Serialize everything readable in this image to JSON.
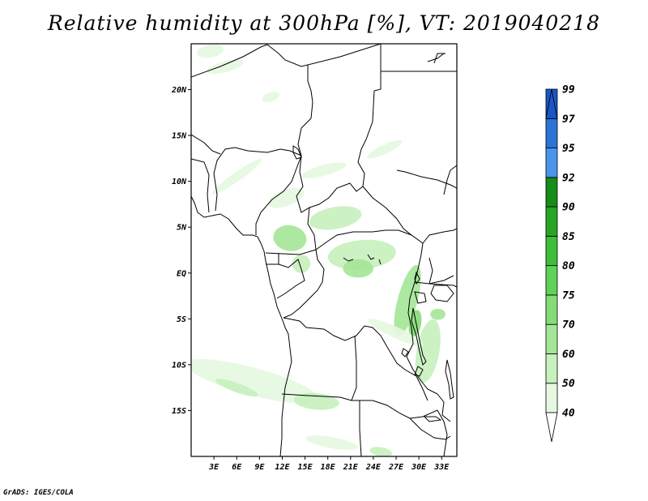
{
  "title": "Relative humidity at 300hPa [%], VT: 2019040218",
  "credit": "GrADS: IGES/COLA",
  "map": {
    "lon_range": [
      0,
      35
    ],
    "lat_range": [
      -20,
      25
    ],
    "lat_ticks": [
      {
        "value": 20,
        "label": "20N"
      },
      {
        "value": 15,
        "label": "15N"
      },
      {
        "value": 10,
        "label": "10N"
      },
      {
        "value": 5,
        "label": "5N"
      },
      {
        "value": 0,
        "label": "EQ"
      },
      {
        "value": -5,
        "label": "5S"
      },
      {
        "value": -10,
        "label": "10S"
      },
      {
        "value": -15,
        "label": "15S"
      }
    ],
    "lon_ticks": [
      {
        "value": 3,
        "label": "3E"
      },
      {
        "value": 6,
        "label": "6E"
      },
      {
        "value": 9,
        "label": "9E"
      },
      {
        "value": 12,
        "label": "12E"
      },
      {
        "value": 15,
        "label": "15E"
      },
      {
        "value": 18,
        "label": "18E"
      },
      {
        "value": 21,
        "label": "21E"
      },
      {
        "value": 24,
        "label": "24E"
      },
      {
        "value": 27,
        "label": "27E"
      },
      {
        "value": 30,
        "label": "30E"
      },
      {
        "value": 33,
        "label": "33E"
      }
    ]
  },
  "colorbar": {
    "levels": [
      {
        "label": "40",
        "color": "#ffffff"
      },
      {
        "label": "50",
        "color": "#e6f8e0"
      },
      {
        "label": "60",
        "color": "#c6f0bc"
      },
      {
        "label": "70",
        "color": "#a4e697"
      },
      {
        "label": "75",
        "color": "#84dc77"
      },
      {
        "label": "80",
        "color": "#5fd258"
      },
      {
        "label": "85",
        "color": "#3fbe3a"
      },
      {
        "label": "90",
        "color": "#27a525"
      },
      {
        "label": "92",
        "color": "#168c19"
      },
      {
        "label": "95",
        "color": "#4a95ea"
      },
      {
        "label": "97",
        "color": "#2a74d8"
      },
      {
        "label": "99",
        "color": "#1a56c6"
      }
    ]
  },
  "humidity_blobs": [
    {
      "lon": 2.5,
      "lat": 24.2,
      "rx": 1.8,
      "ry": 0.7,
      "rot": -10,
      "level": 1
    },
    {
      "lon": 4.5,
      "lat": 22.5,
      "rx": 2.5,
      "ry": 0.6,
      "rot": -15,
      "level": 1
    },
    {
      "lon": 10.5,
      "lat": 19.2,
      "rx": 1.2,
      "ry": 0.5,
      "rot": -20,
      "level": 1
    },
    {
      "lon": 6.0,
      "lat": 10.5,
      "rx": 4.0,
      "ry": 0.5,
      "rot": -35,
      "level": 1
    },
    {
      "lon": 17.5,
      "lat": 11.2,
      "rx": 3.0,
      "ry": 0.6,
      "rot": -15,
      "level": 1
    },
    {
      "lon": 25.5,
      "lat": 13.5,
      "rx": 2.5,
      "ry": 0.5,
      "rot": -25,
      "level": 1
    },
    {
      "lon": 12.5,
      "lat": 8.2,
      "rx": 2.5,
      "ry": 0.9,
      "rot": -20,
      "level": 1
    },
    {
      "lon": 19.0,
      "lat": 6.0,
      "rx": 3.5,
      "ry": 1.2,
      "rot": -10,
      "level": 2
    },
    {
      "lon": 13.0,
      "lat": 3.8,
      "rx": 2.2,
      "ry": 1.4,
      "rot": 10,
      "level": 3
    },
    {
      "lon": 14.5,
      "lat": 1.0,
      "rx": 1.2,
      "ry": 1.0,
      "rot": 0,
      "level": 2
    },
    {
      "lon": 22.5,
      "lat": 2.0,
      "rx": 4.5,
      "ry": 1.6,
      "rot": -5,
      "level": 2
    },
    {
      "lon": 22.0,
      "lat": 0.5,
      "rx": 2.0,
      "ry": 1.0,
      "rot": 0,
      "level": 3
    },
    {
      "lon": 28.5,
      "lat": -3.0,
      "rx": 1.3,
      "ry": 4.0,
      "rot": 15,
      "level": 3
    },
    {
      "lon": 31.2,
      "lat": -8.5,
      "rx": 1.5,
      "ry": 3.5,
      "rot": 10,
      "level": 2
    },
    {
      "lon": 29.5,
      "lat": -5.5,
      "rx": 0.8,
      "ry": 1.5,
      "rot": 10,
      "level": 4
    },
    {
      "lon": 32.5,
      "lat": -4.5,
      "rx": 1.0,
      "ry": 0.6,
      "rot": 0,
      "level": 3
    },
    {
      "lon": 27.0,
      "lat": -6.5,
      "rx": 4.0,
      "ry": 0.6,
      "rot": 25,
      "level": 1
    },
    {
      "lon": 8.0,
      "lat": -11.8,
      "rx": 9.0,
      "ry": 1.5,
      "rot": 15,
      "level": 1
    },
    {
      "lon": 6.0,
      "lat": -12.5,
      "rx": 3.0,
      "ry": 0.5,
      "rot": 20,
      "level": 2
    },
    {
      "lon": 16.5,
      "lat": -14.0,
      "rx": 3.0,
      "ry": 0.9,
      "rot": 5,
      "level": 2
    },
    {
      "lon": 18.5,
      "lat": -18.5,
      "rx": 3.5,
      "ry": 0.6,
      "rot": 10,
      "level": 1
    },
    {
      "lon": 25.0,
      "lat": -19.5,
      "rx": 1.5,
      "ry": 0.5,
      "rot": 10,
      "level": 2
    }
  ]
}
